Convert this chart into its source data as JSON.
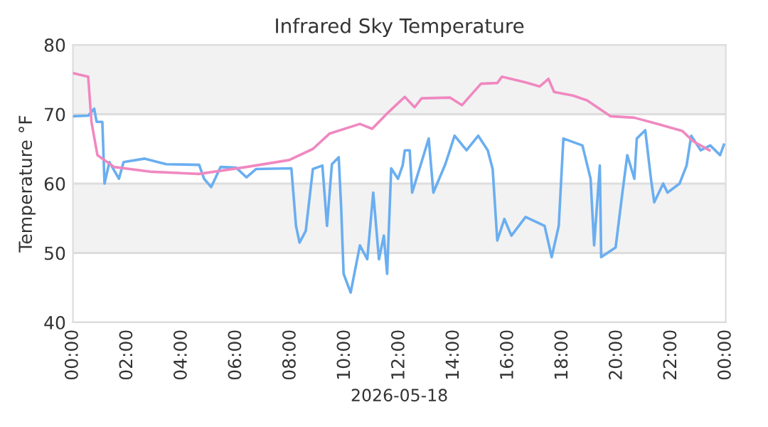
{
  "chart_data": {
    "type": "line",
    "title": "Infrared Sky Temperature",
    "xlabel": "2026-05-18",
    "ylabel": "Temperature °F",
    "xlim": [
      0,
      24
    ],
    "xticks": [
      {
        "value": 0,
        "label": "00:00"
      },
      {
        "value": 2,
        "label": "02:00"
      },
      {
        "value": 4,
        "label": "04:00"
      },
      {
        "value": 6,
        "label": "06:00"
      },
      {
        "value": 8,
        "label": "08:00"
      },
      {
        "value": 10,
        "label": "10:00"
      },
      {
        "value": 12,
        "label": "12:00"
      },
      {
        "value": 14,
        "label": "14:00"
      },
      {
        "value": 16,
        "label": "16:00"
      },
      {
        "value": 18,
        "label": "18:00"
      },
      {
        "value": 20,
        "label": "20:00"
      },
      {
        "value": 22,
        "label": "22:00"
      },
      {
        "value": 24,
        "label": "00:00"
      }
    ],
    "ylim": [
      40,
      80
    ],
    "yticks": [
      40,
      50,
      60,
      70,
      80
    ],
    "grid": "y",
    "legend": false,
    "bands": [
      {
        "axis": "y",
        "from": 50,
        "to": 60,
        "color": "#f2f2f2"
      },
      {
        "axis": "y",
        "from": 70,
        "to": 80,
        "color": "#f2f2f2"
      }
    ],
    "series": [
      {
        "color": "#6aaef0",
        "x": [
          0.03,
          0.56,
          0.78,
          0.87,
          1.08,
          1.16,
          1.34,
          1.69,
          1.86,
          2.64,
          3.43,
          4.64,
          4.82,
          5.08,
          5.43,
          6.0,
          6.38,
          6.73,
          8.03,
          8.2,
          8.33,
          8.56,
          8.82,
          9.17,
          9.34,
          9.52,
          9.77,
          9.86,
          9.95,
          10.21,
          10.38,
          10.55,
          10.82,
          11.04,
          11.25,
          11.43,
          11.55,
          11.7,
          11.95,
          12.12,
          12.2,
          12.38,
          12.47,
          13.08,
          13.25,
          13.69,
          14.03,
          14.47,
          14.9,
          15.25,
          15.43,
          15.6,
          15.86,
          16.12,
          16.64,
          17.34,
          17.6,
          17.86,
          18.03,
          18.73,
          19.03,
          19.16,
          19.37,
          19.42,
          19.95,
          20.2,
          20.38,
          20.64,
          20.73,
          21.04,
          21.25,
          21.37,
          21.7,
          21.86,
          22.3,
          22.56,
          22.73,
          23.08,
          23.43,
          23.79,
          23.93
        ],
        "values": [
          69.7,
          69.8,
          70.8,
          68.9,
          68.9,
          60.0,
          63.1,
          60.7,
          63.1,
          63.6,
          62.8,
          62.7,
          60.7,
          59.5,
          62.4,
          62.3,
          60.9,
          62.1,
          62.2,
          53.9,
          51.5,
          53.2,
          62.1,
          62.6,
          53.9,
          62.8,
          63.8,
          56.6,
          47.0,
          44.3,
          47.7,
          51.1,
          49.1,
          58.7,
          49.1,
          52.5,
          47.0,
          62.2,
          60.7,
          62.6,
          64.8,
          64.8,
          58.7,
          66.5,
          58.7,
          62.8,
          66.9,
          64.8,
          66.9,
          64.8,
          62.1,
          51.8,
          54.9,
          52.5,
          55.2,
          53.9,
          49.4,
          53.9,
          66.5,
          65.5,
          60.7,
          51.1,
          62.6,
          49.4,
          50.8,
          58.7,
          64.1,
          60.7,
          66.5,
          67.7,
          60.7,
          57.3,
          60.0,
          58.7,
          60.0,
          62.6,
          66.9,
          64.8,
          65.5,
          64.1,
          65.6
        ]
      },
      {
        "color": "#f088c0",
        "x": [
          0.03,
          0.56,
          0.68,
          0.9,
          1.51,
          2.9,
          4.64,
          6.38,
          7.95,
          8.82,
          9.43,
          10.55,
          11.0,
          11.6,
          12.2,
          12.56,
          12.82,
          13.86,
          14.3,
          15.0,
          15.6,
          15.77,
          16.64,
          17.16,
          17.48,
          17.69,
          18.38,
          18.9,
          19.77,
          20.64,
          21.5,
          22.4,
          22.8,
          23.4
        ],
        "values": [
          75.9,
          75.4,
          68.9,
          64.1,
          62.4,
          61.7,
          61.4,
          62.4,
          63.4,
          65.0,
          67.2,
          68.6,
          67.9,
          70.3,
          72.5,
          71.0,
          72.3,
          72.4,
          71.3,
          74.4,
          74.5,
          75.4,
          74.6,
          74.0,
          75.1,
          73.2,
          72.7,
          72.0,
          69.7,
          69.5,
          68.6,
          67.6,
          66.1,
          64.8
        ]
      }
    ]
  }
}
